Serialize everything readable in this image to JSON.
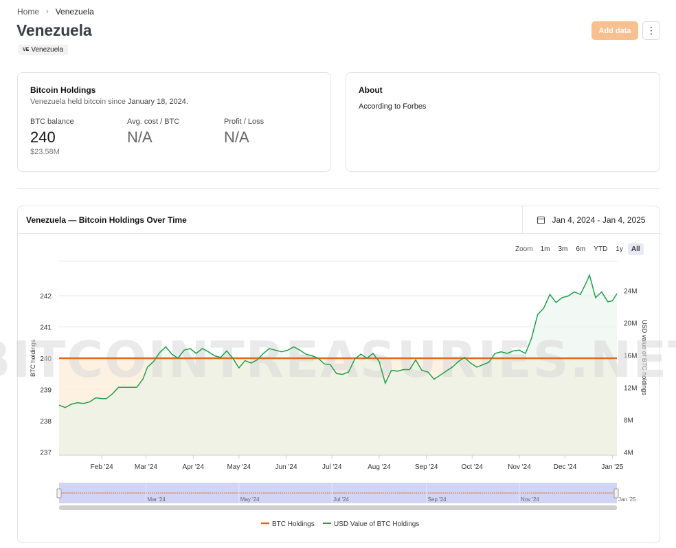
{
  "breadcrumb": {
    "home": "Home",
    "separator": "›",
    "current": "Venezuela"
  },
  "page": {
    "title": "Venezuela",
    "flag_code": "VE",
    "badge": "Venezuela"
  },
  "actions": {
    "add_data": "Add data",
    "more": "⋮"
  },
  "holdings": {
    "title": "Bitcoin Holdings",
    "subtitle_prefix": "Venezuela held bitcoin since",
    "subtitle_date": "January 18, 2024.",
    "btc_balance_label": "BTC balance",
    "btc_balance": "240",
    "usd_value": "$23.58M",
    "avg_cost_label": "Avg. cost / BTC",
    "avg_cost": "N/A",
    "pl_label": "Profit / Loss",
    "pl": "N/A"
  },
  "about": {
    "title": "About",
    "text": "According to Forbes"
  },
  "chart_card": {
    "title": "Venezuela — Bitcoin Holdings Over Time",
    "date_range": "Jan 4, 2024 - Jan 4, 2025"
  },
  "zoom": {
    "label": "Zoom",
    "options": [
      "1m",
      "3m",
      "6m",
      "YTD",
      "1y",
      "All"
    ],
    "active": "All"
  },
  "colors": {
    "btc": "#e4671f",
    "usd": "#1fa04c",
    "navigator": "#c9ccf3",
    "accent": "#f7c08e"
  },
  "chart_data": {
    "type": "line",
    "watermark": "BITCOINTREASURIES.NET",
    "x_ticks": [
      "Feb '24",
      "Mar '24",
      "Apr '24",
      "May '24",
      "Jun '24",
      "Jul '24",
      "Aug '24",
      "Sep '24",
      "Oct '24",
      "Nov '24",
      "Dec '24",
      "Jan '25"
    ],
    "x_start": "2024-01-04",
    "x_end": "2025-01-04",
    "y_left": {
      "label": "BTC holdings",
      "ticks": [
        237,
        238,
        239,
        240,
        241,
        242
      ],
      "range": [
        236.9,
        243.1
      ]
    },
    "y_right": {
      "label": "USD value of BTC holdings",
      "ticks": [
        "4M",
        "8M",
        "12M",
        "16M",
        "20M",
        "24M"
      ],
      "tick_values": [
        4,
        8,
        12,
        16,
        20,
        24
      ],
      "range": [
        3.6,
        27.6
      ],
      "unit": "M"
    },
    "legend": {
      "placement": "bottom-center"
    },
    "navigator_ticks": [
      "Mar '24",
      "May '24",
      "Jul '24",
      "Sep '24",
      "Nov '24",
      "Jan '25"
    ],
    "series": [
      {
        "name": "BTC Holdings",
        "axis": "left",
        "points": [
          [
            "2024-01-04",
            240
          ],
          [
            "2025-01-04",
            240
          ]
        ]
      },
      {
        "name": "USD Value of BTC Holdings",
        "axis": "right",
        "points": [
          [
            "2024-01-04",
            9.8
          ],
          [
            "2024-01-08",
            9.5
          ],
          [
            "2024-01-12",
            9.9
          ],
          [
            "2024-01-16",
            10.1
          ],
          [
            "2024-01-20",
            10.0
          ],
          [
            "2024-01-24",
            10.2
          ],
          [
            "2024-01-28",
            10.7
          ],
          [
            "2024-02-01",
            10.6
          ],
          [
            "2024-02-04",
            10.6
          ],
          [
            "2024-02-08",
            11.2
          ],
          [
            "2024-02-12",
            12.0
          ],
          [
            "2024-02-16",
            12.0
          ],
          [
            "2024-02-20",
            12.0
          ],
          [
            "2024-02-24",
            12.0
          ],
          [
            "2024-02-28",
            13.0
          ],
          [
            "2024-03-02",
            14.5
          ],
          [
            "2024-03-06",
            15.2
          ],
          [
            "2024-03-10",
            16.3
          ],
          [
            "2024-03-14",
            17.0
          ],
          [
            "2024-03-18",
            16.1
          ],
          [
            "2024-03-22",
            15.6
          ],
          [
            "2024-03-26",
            16.6
          ],
          [
            "2024-03-30",
            16.8
          ],
          [
            "2024-04-03",
            16.2
          ],
          [
            "2024-04-07",
            16.8
          ],
          [
            "2024-04-11",
            16.4
          ],
          [
            "2024-04-15",
            15.9
          ],
          [
            "2024-04-19",
            15.7
          ],
          [
            "2024-04-23",
            16.5
          ],
          [
            "2024-04-27",
            15.6
          ],
          [
            "2024-05-01",
            14.4
          ],
          [
            "2024-05-05",
            15.3
          ],
          [
            "2024-05-09",
            15.0
          ],
          [
            "2024-05-13",
            15.4
          ],
          [
            "2024-05-17",
            16.2
          ],
          [
            "2024-05-21",
            16.8
          ],
          [
            "2024-05-25",
            16.6
          ],
          [
            "2024-05-29",
            16.4
          ],
          [
            "2024-06-02",
            16.6
          ],
          [
            "2024-06-06",
            17.0
          ],
          [
            "2024-06-10",
            16.6
          ],
          [
            "2024-06-14",
            16.1
          ],
          [
            "2024-06-18",
            15.9
          ],
          [
            "2024-06-22",
            15.6
          ],
          [
            "2024-06-26",
            14.9
          ],
          [
            "2024-06-30",
            14.8
          ],
          [
            "2024-07-04",
            13.7
          ],
          [
            "2024-07-08",
            13.6
          ],
          [
            "2024-07-12",
            13.9
          ],
          [
            "2024-07-16",
            15.5
          ],
          [
            "2024-07-20",
            16.1
          ],
          [
            "2024-07-24",
            15.6
          ],
          [
            "2024-07-28",
            16.2
          ],
          [
            "2024-08-01",
            15.2
          ],
          [
            "2024-08-05",
            12.5
          ],
          [
            "2024-08-09",
            14.1
          ],
          [
            "2024-08-13",
            14.0
          ],
          [
            "2024-08-17",
            14.2
          ],
          [
            "2024-08-21",
            14.2
          ],
          [
            "2024-08-25",
            15.4
          ],
          [
            "2024-08-29",
            14.1
          ],
          [
            "2024-09-02",
            13.9
          ],
          [
            "2024-09-06",
            13.0
          ],
          [
            "2024-09-10",
            13.5
          ],
          [
            "2024-09-14",
            14.0
          ],
          [
            "2024-09-18",
            14.5
          ],
          [
            "2024-09-22",
            15.2
          ],
          [
            "2024-09-26",
            15.7
          ],
          [
            "2024-09-30",
            15.0
          ],
          [
            "2024-10-04",
            14.5
          ],
          [
            "2024-10-08",
            14.8
          ],
          [
            "2024-10-12",
            15.1
          ],
          [
            "2024-10-16",
            16.2
          ],
          [
            "2024-10-20",
            16.4
          ],
          [
            "2024-10-24",
            16.2
          ],
          [
            "2024-10-28",
            16.5
          ],
          [
            "2024-11-01",
            16.6
          ],
          [
            "2024-11-05",
            16.2
          ],
          [
            "2024-11-09",
            18.1
          ],
          [
            "2024-11-13",
            21.0
          ],
          [
            "2024-11-17",
            21.8
          ],
          [
            "2024-11-21",
            23.5
          ],
          [
            "2024-11-25",
            22.5
          ],
          [
            "2024-11-29",
            23.1
          ],
          [
            "2024-12-03",
            23.3
          ],
          [
            "2024-12-07",
            23.8
          ],
          [
            "2024-12-11",
            23.5
          ],
          [
            "2024-12-15",
            25.0
          ],
          [
            "2024-12-17",
            25.9
          ],
          [
            "2024-12-21",
            23.1
          ],
          [
            "2024-12-25",
            23.8
          ],
          [
            "2024-12-29",
            22.6
          ],
          [
            "2025-01-01",
            22.7
          ],
          [
            "2025-01-04",
            23.6
          ]
        ]
      }
    ]
  }
}
